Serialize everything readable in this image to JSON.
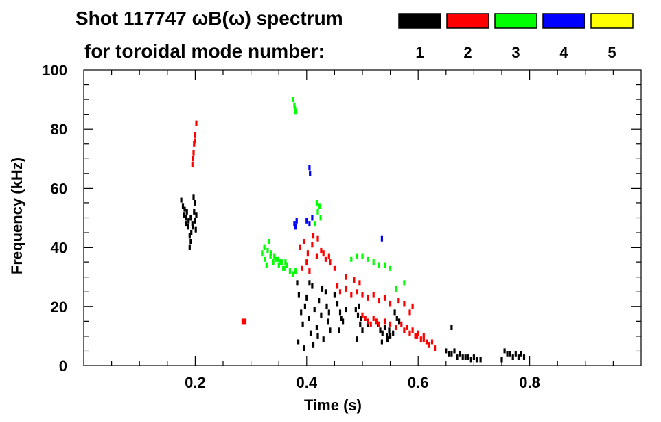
{
  "chart_data": {
    "type": "scatter",
    "title": "Shot 117747 ωB(ω) spectrum",
    "subtitle": "for toroidal mode number:",
    "xlabel": "Time (s)",
    "ylabel": "Frequency (kHz)",
    "xlim": [
      0.0,
      1.0
    ],
    "ylim": [
      0,
      100
    ],
    "x_ticks": [
      0.2,
      0.4,
      0.6,
      0.8
    ],
    "x_tick_labels": [
      "0.2",
      "0.4",
      "0.6",
      "0.8"
    ],
    "y_ticks": [
      0,
      20,
      40,
      60,
      80,
      100
    ],
    "y_tick_labels": [
      "0",
      "20",
      "40",
      "60",
      "80",
      "100"
    ],
    "x_minor_step": 0.05,
    "y_minor_step": 5,
    "legend": [
      {
        "label": "1",
        "color": "#000000"
      },
      {
        "label": "2",
        "color": "#ff0000"
      },
      {
        "label": "3",
        "color": "#00ff00"
      },
      {
        "label": "4",
        "color": "#0000ff"
      },
      {
        "label": "5",
        "color": "#ffff00"
      }
    ],
    "series": [
      {
        "name": "n=1",
        "color": "#000000",
        "points": [
          [
            0.175,
            56
          ],
          [
            0.178,
            54
          ],
          [
            0.181,
            53
          ],
          [
            0.184,
            50
          ],
          [
            0.187,
            47
          ],
          [
            0.19,
            44
          ],
          [
            0.192,
            42
          ],
          [
            0.195,
            48
          ],
          [
            0.198,
            52
          ],
          [
            0.2,
            55
          ],
          [
            0.202,
            51
          ],
          [
            0.185,
            52
          ],
          [
            0.188,
            49
          ],
          [
            0.192,
            50
          ],
          [
            0.196,
            47
          ],
          [
            0.18,
            51
          ],
          [
            0.183,
            48
          ],
          [
            0.193,
            45
          ],
          [
            0.197,
            57
          ],
          [
            0.199,
            49
          ],
          [
            0.201,
            46
          ],
          [
            0.19,
            40
          ],
          [
            0.383,
            28
          ],
          [
            0.386,
            24
          ],
          [
            0.39,
            18
          ],
          [
            0.393,
            14
          ],
          [
            0.397,
            20
          ],
          [
            0.4,
            23
          ],
          [
            0.404,
            16
          ],
          [
            0.407,
            11
          ],
          [
            0.41,
            27
          ],
          [
            0.414,
            19
          ],
          [
            0.418,
            13
          ],
          [
            0.422,
            22
          ],
          [
            0.426,
            17
          ],
          [
            0.43,
            9
          ],
          [
            0.434,
            25
          ],
          [
            0.438,
            15
          ],
          [
            0.442,
            12
          ],
          [
            0.385,
            8
          ],
          [
            0.395,
            6
          ],
          [
            0.405,
            28
          ],
          [
            0.412,
            7
          ],
          [
            0.42,
            10
          ],
          [
            0.428,
            26
          ],
          [
            0.436,
            20
          ],
          [
            0.44,
            18
          ],
          [
            0.45,
            24
          ],
          [
            0.455,
            21
          ],
          [
            0.46,
            18
          ],
          [
            0.465,
            15
          ],
          [
            0.47,
            19
          ],
          [
            0.458,
            12
          ],
          [
            0.462,
            16
          ],
          [
            0.488,
            19
          ],
          [
            0.492,
            17
          ],
          [
            0.496,
            14
          ],
          [
            0.5,
            12
          ],
          [
            0.49,
            9
          ],
          [
            0.494,
            20
          ],
          [
            0.498,
            16
          ],
          [
            0.505,
            16
          ],
          [
            0.51,
            14
          ],
          [
            0.528,
            14
          ],
          [
            0.532,
            12
          ],
          [
            0.536,
            11
          ],
          [
            0.54,
            13
          ],
          [
            0.544,
            10
          ],
          [
            0.548,
            12
          ],
          [
            0.55,
            10
          ],
          [
            0.535,
            8
          ],
          [
            0.545,
            9
          ],
          [
            0.555,
            11
          ],
          [
            0.558,
            18
          ],
          [
            0.562,
            16
          ],
          [
            0.566,
            15
          ],
          [
            0.65,
            5
          ],
          [
            0.655,
            4
          ],
          [
            0.66,
            4
          ],
          [
            0.665,
            5
          ],
          [
            0.67,
            3
          ],
          [
            0.675,
            4
          ],
          [
            0.68,
            3
          ],
          [
            0.685,
            3
          ],
          [
            0.69,
            3
          ],
          [
            0.695,
            2
          ],
          [
            0.7,
            3
          ],
          [
            0.705,
            2
          ],
          [
            0.712,
            2
          ],
          [
            0.66,
            13
          ],
          [
            0.755,
            5
          ],
          [
            0.76,
            4
          ],
          [
            0.765,
            4
          ],
          [
            0.77,
            3
          ],
          [
            0.775,
            4
          ],
          [
            0.78,
            3
          ],
          [
            0.785,
            4
          ],
          [
            0.79,
            3
          ],
          [
            0.75,
            2
          ]
        ]
      },
      {
        "name": "n=2",
        "color": "#ff0000",
        "points": [
          [
            0.202,
            82
          ],
          [
            0.2,
            78
          ],
          [
            0.198,
            75
          ],
          [
            0.197,
            72
          ],
          [
            0.196,
            70
          ],
          [
            0.195,
            68
          ],
          [
            0.199,
            76
          ],
          [
            0.29,
            15
          ],
          [
            0.285,
            15
          ],
          [
            0.388,
            40
          ],
          [
            0.395,
            42
          ],
          [
            0.402,
            38
          ],
          [
            0.41,
            41
          ],
          [
            0.418,
            37
          ],
          [
            0.426,
            39
          ],
          [
            0.434,
            36
          ],
          [
            0.442,
            35
          ],
          [
            0.45,
            33
          ],
          [
            0.392,
            33
          ],
          [
            0.4,
            35
          ],
          [
            0.412,
            44
          ],
          [
            0.42,
            43
          ],
          [
            0.43,
            38
          ],
          [
            0.44,
            37
          ],
          [
            0.405,
            32
          ],
          [
            0.455,
            27
          ],
          [
            0.46,
            25
          ],
          [
            0.47,
            26
          ],
          [
            0.48,
            24
          ],
          [
            0.49,
            25
          ],
          [
            0.5,
            24
          ],
          [
            0.51,
            23
          ],
          [
            0.52,
            24
          ],
          [
            0.53,
            22
          ],
          [
            0.54,
            23
          ],
          [
            0.55,
            21
          ],
          [
            0.565,
            22
          ],
          [
            0.575,
            21
          ],
          [
            0.585,
            18
          ],
          [
            0.59,
            20
          ],
          [
            0.47,
            30
          ],
          [
            0.485,
            29
          ],
          [
            0.495,
            28
          ],
          [
            0.5,
            17
          ],
          [
            0.505,
            16
          ],
          [
            0.51,
            15
          ],
          [
            0.515,
            14
          ],
          [
            0.52,
            16
          ],
          [
            0.525,
            15
          ],
          [
            0.53,
            14
          ],
          [
            0.54,
            15
          ],
          [
            0.55,
            14
          ],
          [
            0.56,
            13
          ],
          [
            0.57,
            14
          ],
          [
            0.575,
            12
          ],
          [
            0.58,
            13
          ],
          [
            0.585,
            11
          ],
          [
            0.59,
            12
          ],
          [
            0.595,
            10
          ],
          [
            0.6,
            11
          ],
          [
            0.605,
            9
          ],
          [
            0.61,
            10
          ],
          [
            0.615,
            8
          ],
          [
            0.62,
            7
          ],
          [
            0.625,
            8
          ],
          [
            0.63,
            6
          ],
          [
            0.61,
            9
          ],
          [
            0.598,
            10
          ]
        ]
      },
      {
        "name": "n=3",
        "color": "#00ff00",
        "points": [
          [
            0.376,
            90
          ],
          [
            0.378,
            88
          ],
          [
            0.38,
            86
          ],
          [
            0.379,
            87
          ],
          [
            0.32,
            38
          ],
          [
            0.325,
            36
          ],
          [
            0.33,
            39
          ],
          [
            0.335,
            37
          ],
          [
            0.34,
            35
          ],
          [
            0.345,
            36
          ],
          [
            0.35,
            34
          ],
          [
            0.355,
            35
          ],
          [
            0.36,
            33
          ],
          [
            0.365,
            34
          ],
          [
            0.37,
            32
          ],
          [
            0.375,
            31
          ],
          [
            0.38,
            32
          ],
          [
            0.324,
            40
          ],
          [
            0.332,
            42
          ],
          [
            0.328,
            34
          ],
          [
            0.336,
            38
          ],
          [
            0.342,
            37
          ],
          [
            0.348,
            36
          ],
          [
            0.352,
            35
          ],
          [
            0.358,
            33
          ],
          [
            0.362,
            35
          ],
          [
            0.418,
            55
          ],
          [
            0.42,
            52
          ],
          [
            0.423,
            54
          ],
          [
            0.425,
            50
          ],
          [
            0.415,
            48
          ],
          [
            0.48,
            36
          ],
          [
            0.49,
            37
          ],
          [
            0.5,
            37
          ],
          [
            0.51,
            36
          ],
          [
            0.52,
            35
          ],
          [
            0.53,
            34
          ],
          [
            0.54,
            34
          ],
          [
            0.55,
            33
          ],
          [
            0.575,
            28
          ],
          [
            0.56,
            26
          ]
        ]
      },
      {
        "name": "n=4",
        "color": "#0000ff",
        "points": [
          [
            0.405,
            67
          ],
          [
            0.406,
            65
          ],
          [
            0.378,
            48
          ],
          [
            0.38,
            47
          ],
          [
            0.382,
            49
          ],
          [
            0.4,
            49
          ],
          [
            0.405,
            48
          ],
          [
            0.41,
            50
          ],
          [
            0.535,
            43
          ]
        ]
      },
      {
        "name": "n=5",
        "color": "#ffff00",
        "points": []
      }
    ]
  }
}
